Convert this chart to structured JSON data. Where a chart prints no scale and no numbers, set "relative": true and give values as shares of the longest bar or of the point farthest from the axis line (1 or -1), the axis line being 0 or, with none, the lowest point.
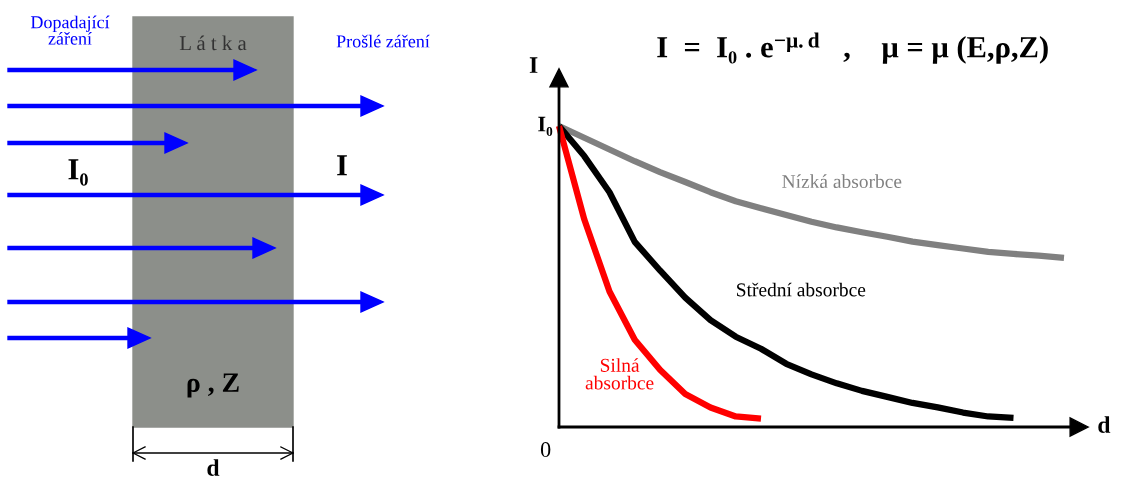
{
  "chart_data": [
    {
      "type": "other",
      "annotations": [
        "Dopadající\nzáření",
        "L á t k a",
        "Prošlé záření",
        "I₀",
        "I",
        "ρ , Z",
        "d"
      ]
    },
    {
      "type": "line",
      "title": "I  =  I₀ . e$^{−μ.d}$   ,    μ = μ (E,ρ,Z)",
      "xlabel": "d",
      "ylabel": "I",
      "relative": true,
      "annotations": [
        "I₀",
        "0"
      ],
      "marker": "none",
      "line_style": "solid",
      "categories": [
        null,
        null,
        null,
        null,
        null,
        null,
        null,
        null,
        null,
        null,
        null,
        null,
        null,
        null,
        null,
        null,
        null,
        null,
        null,
        null,
        null
      ],
      "series": [
        {
          "name": "Nízká absorbce",
          "color": "#808080",
          "values": [
            1,
            0.961,
            0.922,
            0.883,
            0.847,
            0.814,
            0.78,
            0.75,
            0.727,
            0.704,
            0.682,
            0.663,
            0.647,
            0.632,
            0.616,
            0.604,
            0.593,
            0.582,
            0.575,
            0.569,
            0.562
          ]
        },
        {
          "name": "Střední absorbce",
          "color": "#000000",
          "values": [
            1,
            0.9,
            0.78,
            0.615,
            0.52,
            0.43,
            0.355,
            0.3,
            0.26,
            0.21,
            0.175,
            0.145,
            0.12,
            0.1,
            0.08,
            0.065,
            0.048,
            0.035,
            0.03,
            null,
            null
          ]
        },
        {
          "name": "Silná\nabsorbce",
          "color": "#ff0000",
          "values": [
            1,
            0.69,
            0.45,
            0.29,
            0.19,
            0.11,
            0.065,
            0.035,
            0.028,
            null,
            null,
            null,
            null,
            null,
            null,
            null,
            null,
            null,
            null,
            null,
            null
          ]
        }
      ]
    }
  ]
}
